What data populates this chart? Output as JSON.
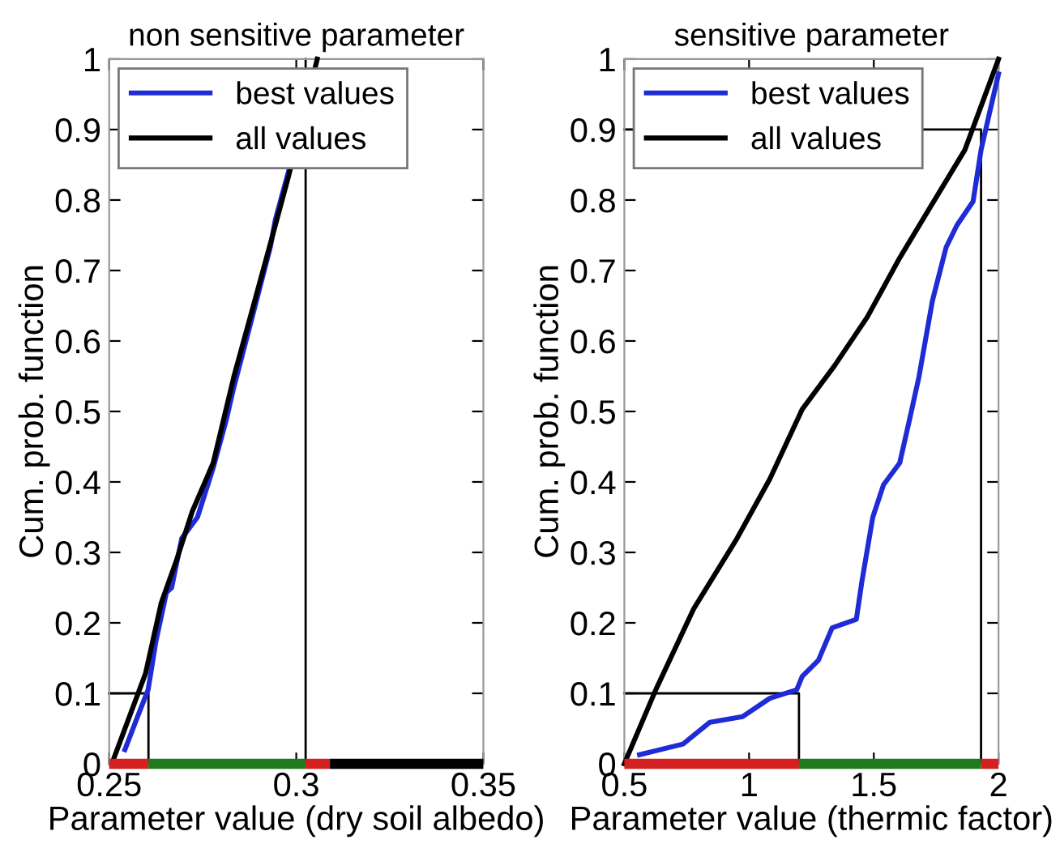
{
  "chart_data": [
    {
      "type": "line",
      "title": "non sensitive parameter",
      "xlabel": "Parameter value (dry soil albedo)",
      "ylabel": "Cum. prob. function",
      "xlim": [
        0.25,
        0.35
      ],
      "xticks": [
        0.25,
        0.3,
        0.35
      ],
      "ylim": [
        0,
        1
      ],
      "yticks": [
        0,
        0.1,
        0.2,
        0.3,
        0.4,
        0.5,
        0.6,
        0.7,
        0.8,
        0.9,
        1
      ],
      "grid": false,
      "legend": "top left",
      "line_style": "solid",
      "marker": "none",
      "series": [
        {
          "name": "best values",
          "color": "#1f2bd6",
          "x": [
            0.2542,
            0.2576,
            0.2604,
            0.2625,
            0.2653,
            0.2667,
            0.2694,
            0.2736,
            0.2778,
            0.2813,
            0.2833,
            0.2875,
            0.2931,
            0.2944,
            0.2979
          ],
          "values": [
            0.02,
            0.067,
            0.105,
            0.174,
            0.243,
            0.25,
            0.32,
            0.35,
            0.42,
            0.488,
            0.534,
            0.619,
            0.734,
            0.772,
            0.84
          ]
        },
        {
          "name": "all values",
          "color": "#000000",
          "x": [
            0.2507,
            0.2597,
            0.2639,
            0.268,
            0.2722,
            0.2778,
            0.2833,
            0.2889,
            0.2944,
            0.2979,
            0.3056
          ],
          "values": [
            0,
            0.128,
            0.228,
            0.289,
            0.358,
            0.427,
            0.549,
            0.657,
            0.764,
            0.833,
            1
          ]
        },
        {
          "type": "line",
          "color": "#000000",
          "x": [
            0.25,
            0.2605,
            0.2605
          ],
          "values": [
            0.1,
            0.1,
            0
          ]
        },
        {
          "type": "line",
          "color": "#000000",
          "x": [
            0.3025,
            0.3025
          ],
          "values": [
            0,
            1
          ]
        },
        {
          "type": "line",
          "color": "#d42020",
          "x": [
            0.25,
            0.2605
          ],
          "values": [
            0,
            0
          ]
        },
        {
          "type": "line",
          "color": "#1f7a1f",
          "x": [
            0.2605,
            0.3025
          ],
          "values": [
            0,
            0
          ]
        },
        {
          "type": "line",
          "color": "#d42020",
          "x": [
            0.3025,
            0.309
          ],
          "values": [
            0,
            0
          ]
        },
        {
          "type": "line",
          "color": "#000000",
          "x": [
            0.309,
            0.35
          ],
          "values": [
            0,
            0
          ]
        }
      ]
    },
    {
      "type": "line",
      "title": "sensitive parameter",
      "xlabel": "Parameter value (thermic factor)",
      "ylabel": "Cum. prob. function",
      "xlim": [
        0.5,
        2
      ],
      "xticks": [
        0.5,
        1,
        1.5,
        2
      ],
      "ylim": [
        0,
        1
      ],
      "yticks": [
        0,
        0.1,
        0.2,
        0.3,
        0.4,
        0.5,
        0.6,
        0.7,
        0.8,
        0.9,
        1
      ],
      "grid": false,
      "legend": "top left",
      "line_style": "solid",
      "marker": "none",
      "series": [
        {
          "name": "best values",
          "color": "#1f2bd6",
          "x": [
            0.561,
            0.735,
            0.843,
            0.974,
            1.083,
            1.191,
            1.213,
            1.278,
            1.333,
            1.43,
            1.452,
            1.496,
            1.539,
            1.604,
            1.648,
            1.681,
            1.735,
            1.79,
            1.833,
            1.898,
            1.93,
            1.97,
            2
          ],
          "values": [
            0.013,
            0.028,
            0.059,
            0.067,
            0.093,
            0.105,
            0.124,
            0.147,
            0.193,
            0.205,
            0.258,
            0.35,
            0.396,
            0.427,
            0.496,
            0.549,
            0.657,
            0.733,
            0.764,
            0.798,
            0.871,
            0.933,
            0.979
          ]
        },
        {
          "name": "all values",
          "color": "#000000",
          "x": [
            0.5,
            0.626,
            0.778,
            0.952,
            1.083,
            1.213,
            1.343,
            1.474,
            1.604,
            1.735,
            1.865,
            2
          ],
          "values": [
            0,
            0.105,
            0.22,
            0.32,
            0.404,
            0.503,
            0.565,
            0.634,
            0.718,
            0.795,
            0.871,
            1
          ]
        },
        {
          "type": "line",
          "color": "#000000",
          "x": [
            0.5,
            1.2,
            1.2
          ],
          "values": [
            0.1,
            0.1,
            0
          ]
        },
        {
          "type": "line",
          "color": "#000000",
          "x": [
            0.5,
            1.93,
            1.93
          ],
          "values": [
            0.9,
            0.9,
            0
          ]
        },
        {
          "type": "line",
          "color": "#d42020",
          "x": [
            0.5,
            1.2
          ],
          "values": [
            0,
            0
          ]
        },
        {
          "type": "line",
          "color": "#1f7a1f",
          "x": [
            1.2,
            1.93
          ],
          "values": [
            0,
            0
          ]
        },
        {
          "type": "line",
          "color": "#d42020",
          "x": [
            1.93,
            2
          ],
          "values": [
            0,
            0
          ]
        }
      ]
    }
  ]
}
